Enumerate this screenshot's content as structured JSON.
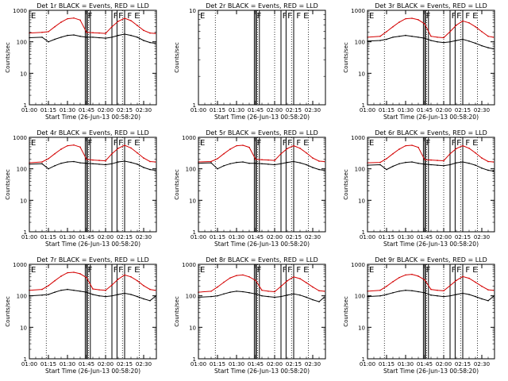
{
  "colors": {
    "events": "#000000",
    "lld": "#d40000",
    "axis": "#000000",
    "background": "#ffffff"
  },
  "shared_x_ticks": [
    "01:00",
    "01:15",
    "01:30",
    "01:45",
    "02:00",
    "02:15",
    "02:30"
  ],
  "shared_x_label": "Start Time (26-Jun-13 00:58:20)",
  "shared_y_label": "Counts/sec",
  "shared_y_ticks": [
    "1",
    "10",
    "100",
    "1000"
  ],
  "chart_data": [
    {
      "type": "line",
      "title": "Det 1r BLACK = Events, RED = LLD",
      "xlabel": "Start Time (26-Jun-13 00:58:20)",
      "ylabel": "Counts/sec",
      "xlim_minutes_after_01_00": [
        0,
        100
      ],
      "ylim": [
        1,
        1000
      ],
      "yscale": "log",
      "has_data": true,
      "x": [
        0,
        10,
        15,
        20,
        25,
        30,
        35,
        40,
        45,
        50,
        55,
        60,
        65,
        70,
        75,
        80,
        85,
        90,
        95,
        99
      ],
      "series": [
        {
          "name": "Events",
          "values": [
            135,
            140,
            100,
            120,
            140,
            160,
            165,
            150,
            140,
            140,
            135,
            130,
            140,
            160,
            175,
            160,
            140,
            110,
            95,
            90
          ]
        },
        {
          "name": "LLD",
          "values": [
            190,
            200,
            210,
            300,
            420,
            540,
            570,
            490,
            200,
            195,
            190,
            185,
            300,
            450,
            560,
            470,
            330,
            230,
            190,
            185
          ]
        }
      ],
      "marker_letters": [
        "E",
        "F",
        "F",
        "F",
        "F",
        "E"
      ]
    },
    {
      "type": "line",
      "title": "Det 2r BLACK = Events, RED = LLD",
      "xlabel": "Start Time (26-Jun-13 00:58:20)",
      "ylabel": "Counts/sec",
      "xlim_minutes_after_01_00": [
        0,
        100
      ],
      "ylim": [
        1,
        10
      ],
      "yscale": "log",
      "has_data": false,
      "series": [],
      "marker_letters": [
        "E",
        "F",
        "F",
        "F",
        "F",
        "E"
      ]
    },
    {
      "type": "line",
      "title": "Det 3r BLACK = Events, RED = LLD",
      "xlabel": "Start Time (26-Jun-13 00:58:20)",
      "ylabel": "Counts/sec",
      "xlim_minutes_after_01_00": [
        0,
        100
      ],
      "ylim": [
        1,
        1000
      ],
      "yscale": "log",
      "has_data": true,
      "x": [
        0,
        10,
        15,
        20,
        25,
        30,
        35,
        40,
        45,
        50,
        55,
        60,
        65,
        70,
        75,
        80,
        85,
        90,
        95,
        99
      ],
      "series": [
        {
          "name": "Events",
          "values": [
            105,
            110,
            120,
            140,
            150,
            160,
            150,
            140,
            130,
            110,
            100,
            95,
            100,
            110,
            120,
            105,
            90,
            75,
            65,
            60
          ]
        },
        {
          "name": "LLD",
          "values": [
            140,
            150,
            210,
            300,
            420,
            540,
            560,
            500,
            370,
            150,
            140,
            135,
            210,
            340,
            460,
            400,
            300,
            210,
            150,
            140
          ]
        }
      ],
      "marker_letters": [
        "E",
        "F",
        "F",
        "F",
        "F",
        "E"
      ]
    },
    {
      "type": "line",
      "title": "Det 4r BLACK = Events, RED = LLD",
      "xlabel": "Start Time (26-Jun-13 00:58:20)",
      "ylabel": "Counts/sec",
      "xlim_minutes_after_01_00": [
        0,
        100
      ],
      "ylim": [
        1,
        1000
      ],
      "yscale": "log",
      "has_data": true,
      "x": [
        0,
        10,
        15,
        20,
        25,
        30,
        35,
        40,
        45,
        50,
        55,
        60,
        65,
        70,
        75,
        80,
        85,
        90,
        95,
        99
      ],
      "series": [
        {
          "name": "Events",
          "values": [
            140,
            145,
            100,
            125,
            150,
            165,
            170,
            155,
            150,
            145,
            140,
            135,
            145,
            165,
            175,
            160,
            140,
            110,
            95,
            90
          ]
        },
        {
          "name": "LLD",
          "values": [
            155,
            165,
            210,
            300,
            420,
            540,
            570,
            490,
            200,
            190,
            185,
            180,
            300,
            450,
            560,
            460,
            320,
            220,
            170,
            165
          ]
        }
      ],
      "marker_letters": [
        "E",
        "F",
        "F",
        "F",
        "F",
        "E"
      ]
    },
    {
      "type": "line",
      "title": "Det 5r BLACK = Events, RED = LLD",
      "xlabel": "Start Time (26-Jun-13 00:58:20)",
      "ylabel": "Counts/sec",
      "xlim_minutes_after_01_00": [
        0,
        100
      ],
      "ylim": [
        1,
        1000
      ],
      "yscale": "log",
      "has_data": true,
      "x": [
        0,
        10,
        15,
        20,
        25,
        30,
        35,
        40,
        45,
        50,
        55,
        60,
        65,
        70,
        75,
        80,
        85,
        90,
        95,
        99
      ],
      "series": [
        {
          "name": "Events",
          "values": [
            150,
            155,
            100,
            125,
            145,
            160,
            165,
            150,
            150,
            145,
            140,
            135,
            145,
            160,
            170,
            155,
            135,
            110,
            95,
            90
          ]
        },
        {
          "name": "LLD",
          "values": [
            165,
            170,
            210,
            300,
            420,
            540,
            560,
            480,
            200,
            195,
            190,
            185,
            300,
            440,
            540,
            450,
            320,
            220,
            175,
            170
          ]
        }
      ],
      "marker_letters": [
        "E",
        "F",
        "F",
        "F",
        "F",
        "E"
      ]
    },
    {
      "type": "line",
      "title": "Det 6r BLACK = Events, RED = LLD",
      "xlabel": "Start Time (26-Jun-13 00:58:20)",
      "ylabel": "Counts/sec",
      "xlim_minutes_after_01_00": [
        0,
        100
      ],
      "ylim": [
        1,
        1000
      ],
      "yscale": "log",
      "has_data": true,
      "x": [
        0,
        10,
        15,
        20,
        25,
        30,
        35,
        40,
        45,
        50,
        55,
        60,
        65,
        70,
        75,
        80,
        85,
        90,
        95,
        99
      ],
      "series": [
        {
          "name": "Events",
          "values": [
            130,
            135,
            95,
            120,
            145,
            160,
            165,
            150,
            140,
            135,
            130,
            125,
            135,
            155,
            165,
            150,
            130,
            105,
            90,
            85
          ]
        },
        {
          "name": "LLD",
          "values": [
            155,
            160,
            210,
            300,
            420,
            540,
            560,
            480,
            195,
            190,
            185,
            180,
            300,
            440,
            540,
            450,
            320,
            220,
            170,
            165
          ]
        }
      ],
      "marker_letters": [
        "E",
        "F",
        "F",
        "F",
        "F",
        "E"
      ]
    },
    {
      "type": "line",
      "title": "Det 7r BLACK = Events, RED = LLD",
      "xlabel": "Start Time (26-Jun-13 00:58:20)",
      "ylabel": "Counts/sec",
      "xlim_minutes_after_01_00": [
        0,
        100
      ],
      "ylim": [
        1,
        1000
      ],
      "yscale": "log",
      "has_data": true,
      "x": [
        0,
        10,
        15,
        20,
        25,
        30,
        35,
        40,
        45,
        50,
        55,
        60,
        65,
        70,
        75,
        80,
        85,
        90,
        95,
        99
      ],
      "series": [
        {
          "name": "Events",
          "values": [
            100,
            105,
            110,
            130,
            150,
            160,
            150,
            140,
            130,
            110,
            100,
            95,
            100,
            110,
            120,
            110,
            95,
            80,
            70,
            95
          ]
        },
        {
          "name": "LLD",
          "values": [
            150,
            160,
            210,
            300,
            420,
            540,
            560,
            500,
            380,
            165,
            155,
            150,
            220,
            340,
            460,
            400,
            300,
            210,
            160,
            150
          ]
        }
      ],
      "marker_letters": [
        "E",
        "F",
        "F",
        "F",
        "F",
        "E"
      ]
    },
    {
      "type": "line",
      "title": "Det 8r BLACK = Events, RED = LLD",
      "xlabel": "Start Time (26-Jun-13 00:58:20)",
      "ylabel": "Counts/sec",
      "xlim_minutes_after_01_00": [
        0,
        100
      ],
      "ylim": [
        1,
        1000
      ],
      "yscale": "log",
      "has_data": true,
      "x": [
        0,
        10,
        15,
        20,
        25,
        30,
        35,
        40,
        45,
        50,
        55,
        60,
        65,
        70,
        75,
        80,
        85,
        90,
        95,
        99
      ],
      "series": [
        {
          "name": "Events",
          "values": [
            90,
            95,
            100,
            115,
            130,
            140,
            135,
            125,
            115,
            100,
            95,
            90,
            95,
            105,
            115,
            105,
            90,
            75,
            65,
            90
          ]
        },
        {
          "name": "LLD",
          "values": [
            130,
            140,
            190,
            270,
            370,
            440,
            460,
            400,
            310,
            150,
            140,
            135,
            200,
            300,
            400,
            350,
            260,
            190,
            145,
            140
          ]
        }
      ],
      "marker_letters": [
        "E",
        "F",
        "F",
        "F",
        "F",
        "E"
      ]
    },
    {
      "type": "line",
      "title": "Det 9r BLACK = Events, RED = LLD",
      "xlabel": "Start Time (26-Jun-13 00:58:20)",
      "ylabel": "Counts/sec",
      "xlim_minutes_after_01_00": [
        0,
        100
      ],
      "ylim": [
        1,
        1000
      ],
      "yscale": "log",
      "has_data": true,
      "x": [
        0,
        10,
        15,
        20,
        25,
        30,
        35,
        40,
        45,
        50,
        55,
        60,
        65,
        70,
        75,
        80,
        85,
        90,
        95,
        99
      ],
      "series": [
        {
          "name": "Events",
          "values": [
            95,
            100,
            110,
            125,
            140,
            150,
            145,
            135,
            125,
            105,
            100,
            95,
            100,
            110,
            120,
            110,
            95,
            80,
            70,
            95
          ]
        },
        {
          "name": "LLD",
          "values": [
            140,
            150,
            200,
            280,
            380,
            460,
            480,
            420,
            320,
            160,
            150,
            145,
            210,
            310,
            410,
            360,
            270,
            200,
            155,
            150
          ]
        }
      ],
      "marker_letters": [
        "E",
        "F",
        "F",
        "F",
        "F",
        "E"
      ]
    }
  ]
}
